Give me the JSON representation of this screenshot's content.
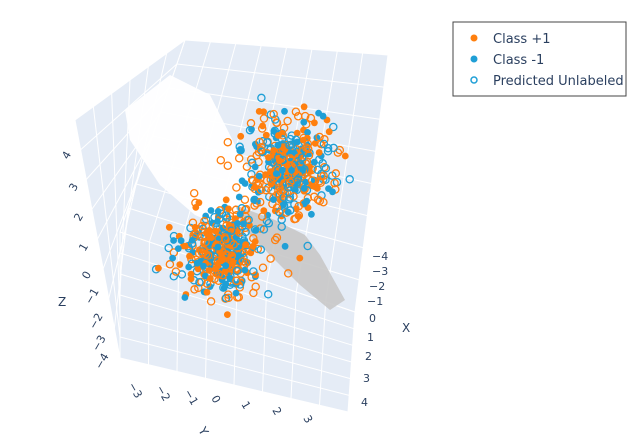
{
  "chart_data": {
    "type": "scatter",
    "title": "",
    "axes": {
      "x": {
        "title": "X",
        "ticks": [
          "−4",
          "−3",
          "−2",
          "−1",
          "0",
          "1",
          "2",
          "3",
          "4"
        ]
      },
      "y": {
        "title": "Y",
        "ticks": [
          "−3",
          "−2",
          "−1",
          "0",
          "1",
          "2",
          "3"
        ]
      },
      "z": {
        "title": "Z",
        "ticks": [
          "−4",
          "−3",
          "−2",
          "−1",
          "0",
          "1",
          "2",
          "3",
          "4"
        ]
      }
    },
    "grid": true,
    "legend": {
      "placement": "top-right",
      "entries": [
        {
          "name": "Class +1",
          "marker": "filled-circle",
          "color": "#ff7f0e"
        },
        {
          "name": "Class -1",
          "marker": "filled-circle",
          "color": "#1f9fd6"
        },
        {
          "name": "Predicted Unlabeled",
          "marker": "open-circle",
          "color": "#1f9fd6"
        }
      ]
    },
    "series": [
      {
        "name": "Class +1",
        "clusters": [
          {
            "center": [
              -1.5,
              -1.5,
              1.5
            ],
            "spread": 0.7
          },
          {
            "center": [
              1.5,
              1.5,
              2.0
            ],
            "spread": 0.7
          }
        ]
      },
      {
        "name": "Class -1",
        "clusters": [
          {
            "center": [
              -1.5,
              -1.5,
              1.5
            ],
            "spread": 0.7
          },
          {
            "center": [
              1.5,
              1.5,
              2.0
            ],
            "spread": 0.7
          }
        ]
      }
    ],
    "decision_surface": {
      "color": "#c8c8c8",
      "description_visible": false
    }
  }
}
